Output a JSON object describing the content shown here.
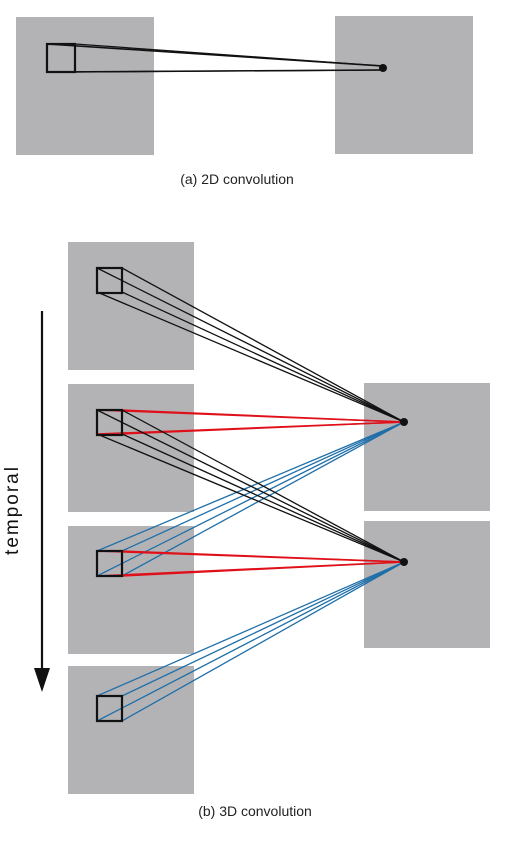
{
  "captions": {
    "conv2d": "(a) 2D convolution",
    "conv3d": "(b) 3D convolution"
  },
  "axis": {
    "temporal_label": "temporal"
  },
  "colors": {
    "frame": "#b3b3b6",
    "kernel": "#111111",
    "red_lines": "#e0101a",
    "blue_lines": "#1f6fa8",
    "black_lines": "#111111"
  }
}
